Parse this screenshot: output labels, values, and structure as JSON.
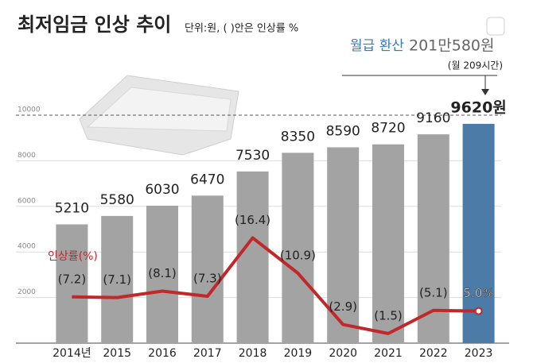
{
  "chart_data": {
    "type": "bar",
    "title": "최저임금 인상 추이",
    "subtitle": "단위:원, ( )안은 인상률 %",
    "annotation_label": "월급 환산",
    "annotation_value": "201만580원",
    "annotation_note": "(월 209시간)",
    "categories": [
      "2014년",
      "2015",
      "2016",
      "2017",
      "2018",
      "2019",
      "2020",
      "2021",
      "2022",
      "2023"
    ],
    "series": [
      {
        "name": "최저임금",
        "type": "bar",
        "colors": [
          "#a3a3a3",
          "#a3a3a3",
          "#a3a3a3",
          "#a3a3a3",
          "#a3a3a3",
          "#a3a3a3",
          "#a3a3a3",
          "#a3a3a3",
          "#a3a3a3",
          "#4b7ba6"
        ],
        "values": [
          5210,
          5580,
          6030,
          6470,
          7530,
          8350,
          8590,
          8720,
          9160,
          9620
        ],
        "value_labels": [
          "5210",
          "5580",
          "6030",
          "6470",
          "7530",
          "8350",
          "8590",
          "8720",
          "9160",
          "9620원"
        ]
      },
      {
        "name": "인상률(%)",
        "type": "line",
        "axis": "y2",
        "color": "#c0282a",
        "values": [
          7.2,
          7.1,
          8.1,
          7.3,
          16.4,
          10.9,
          2.9,
          1.5,
          5.1,
          5.0
        ],
        "value_labels": [
          "(7.2)",
          "(7.1)",
          "(8.1)",
          "(7.3)",
          "(16.4)",
          "(10.9)",
          "(2.9)",
          "(1.5)",
          "(5.1)",
          "5.0%"
        ]
      }
    ],
    "ylim": [
      0,
      10000
    ],
    "yticks": [
      2000,
      4000,
      6000,
      8000,
      10000
    ],
    "y2lim": [
      0,
      35.5
    ],
    "grid": true
  }
}
